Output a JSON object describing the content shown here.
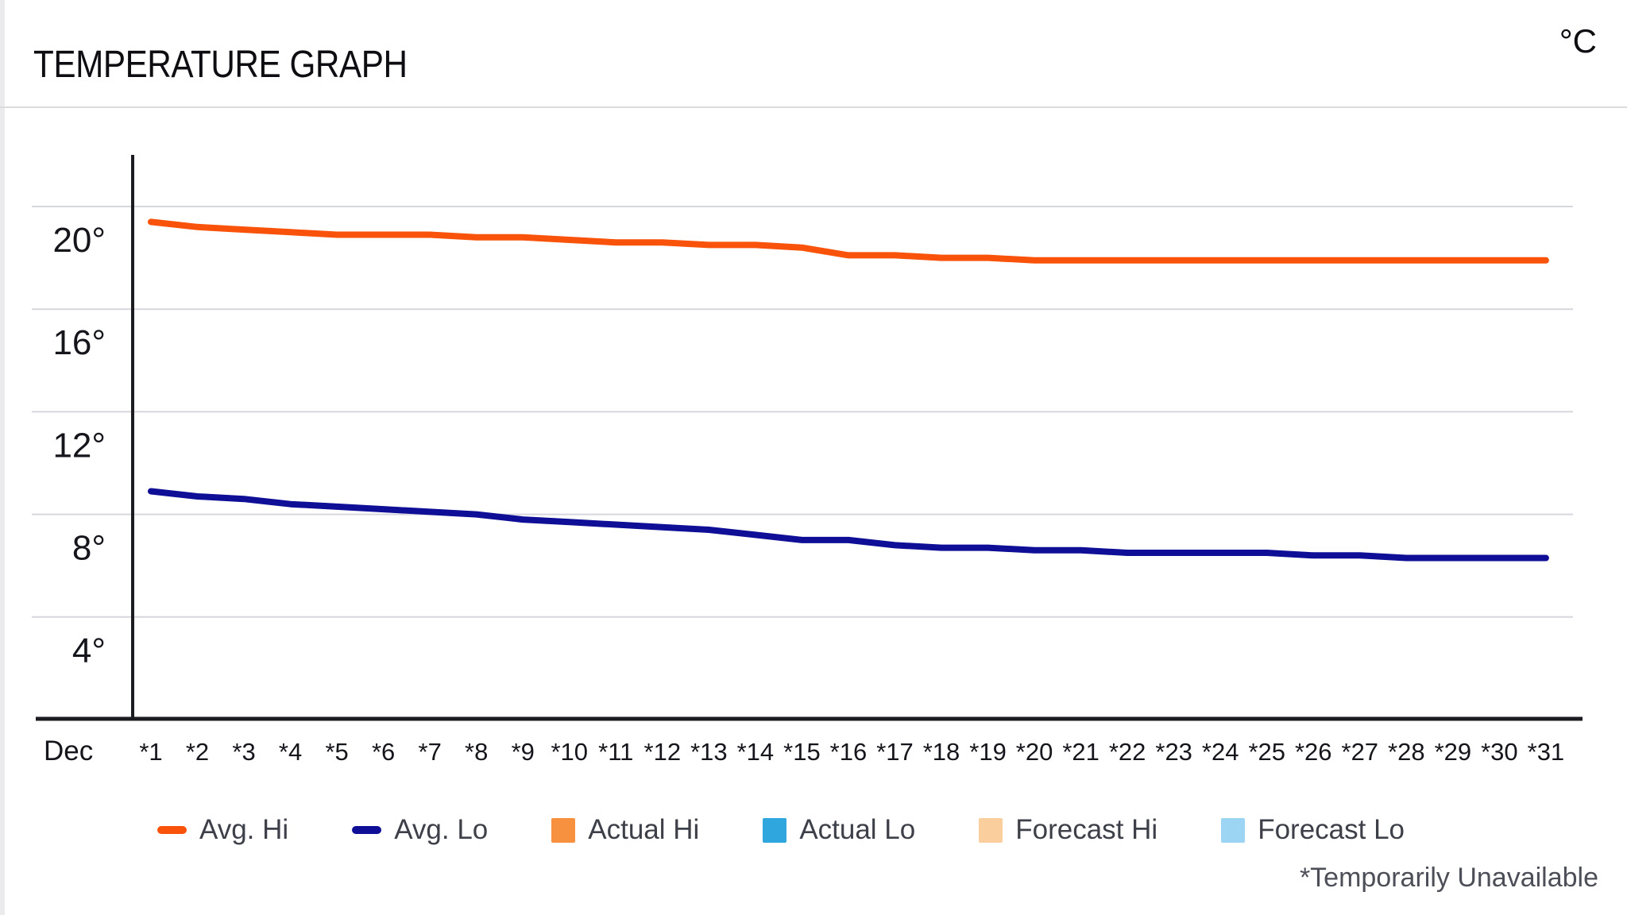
{
  "header": {
    "title": "TEMPERATURE GRAPH",
    "unit_label": "°C"
  },
  "chart_data": {
    "type": "line",
    "title": "TEMPERATURE GRAPH",
    "unit": "°C",
    "x_month_label": "Dec",
    "x_tick_labels": [
      "*1",
      "*2",
      "*3",
      "*4",
      "*5",
      "*6",
      "*7",
      "*8",
      "*9",
      "*10",
      "*11",
      "*12",
      "*13",
      "*14",
      "*15",
      "*16",
      "*17",
      "*18",
      "*19",
      "*20",
      "*21",
      "*22",
      "*23",
      "*24",
      "*25",
      "*26",
      "*27",
      "*28",
      "*29",
      "*30",
      "*31"
    ],
    "y_ticks": [
      20,
      16,
      12,
      8,
      4
    ],
    "y_tick_suffix": "°",
    "ylim": [
      0,
      22
    ],
    "grid": true,
    "legend_position": "bottom",
    "series": [
      {
        "name": "Avg. Hi",
        "style": "line",
        "color": "#F9520A",
        "values": [
          19.4,
          19.2,
          19.1,
          19.0,
          18.9,
          18.9,
          18.9,
          18.8,
          18.8,
          18.7,
          18.6,
          18.6,
          18.5,
          18.5,
          18.4,
          18.1,
          18.1,
          18.0,
          18.0,
          17.9,
          17.9,
          17.9,
          17.9,
          17.9,
          17.9,
          17.9,
          17.9,
          17.9,
          17.9,
          17.9,
          17.9
        ]
      },
      {
        "name": "Avg. Lo",
        "style": "line",
        "color": "#0E0E96",
        "values": [
          8.9,
          8.7,
          8.6,
          8.4,
          8.3,
          8.2,
          8.1,
          8.0,
          7.8,
          7.7,
          7.6,
          7.5,
          7.4,
          7.2,
          7.0,
          7.0,
          6.8,
          6.7,
          6.7,
          6.6,
          6.6,
          6.5,
          6.5,
          6.5,
          6.5,
          6.4,
          6.4,
          6.3,
          6.3,
          6.3,
          6.3
        ]
      },
      {
        "name": "Actual Hi",
        "style": "column",
        "color": "#F7913F",
        "values": []
      },
      {
        "name": "Actual Lo",
        "style": "column",
        "color": "#2FA7DE",
        "values": []
      },
      {
        "name": "Forecast Hi",
        "style": "column",
        "color": "#FACE9D",
        "values": []
      },
      {
        "name": "Forecast Lo",
        "style": "column",
        "color": "#9CD5F3",
        "values": []
      }
    ]
  },
  "legend": {
    "items": [
      {
        "label": "Avg. Hi",
        "color": "#F9520A",
        "swatch": "dash"
      },
      {
        "label": "Avg. Lo",
        "color": "#0E0E96",
        "swatch": "dash"
      },
      {
        "label": "Actual Hi",
        "color": "#F7913F",
        "swatch": "square"
      },
      {
        "label": "Actual Lo",
        "color": "#2FA7DE",
        "swatch": "square"
      },
      {
        "label": "Forecast Hi",
        "color": "#FACE9D",
        "swatch": "square"
      },
      {
        "label": "Forecast Lo",
        "color": "#9CD5F3",
        "swatch": "square"
      }
    ]
  },
  "footnote": "*Temporarily Unavailable"
}
